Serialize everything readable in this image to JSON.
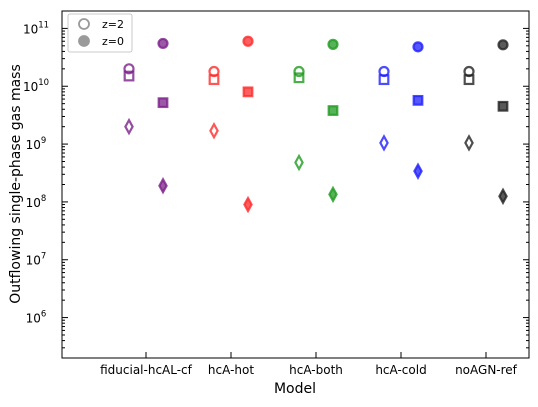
{
  "chart_data": {
    "type": "scatter",
    "title": "",
    "xlabel": "Model",
    "ylabel": "Outflowing single-phase gas mass",
    "yscale": "log",
    "ylim": [
      200000.0,
      200000000000.0
    ],
    "y_ticks": [
      {
        "value": 1000000.0,
        "base": "10",
        "exp": "6"
      },
      {
        "value": 10000000.0,
        "base": "10",
        "exp": "7"
      },
      {
        "value": 100000000.0,
        "base": "10",
        "exp": "8"
      },
      {
        "value": 1000000000.0,
        "base": "10",
        "exp": "9"
      },
      {
        "value": 10000000000.0,
        "base": "10",
        "exp": "10"
      },
      {
        "value": 100000000000.0,
        "base": "10",
        "exp": "11"
      }
    ],
    "categories": [
      "fiducial-hcAL-cf",
      "hcA-hot",
      "hcA-both",
      "hcA-cold",
      "noAGN-ref"
    ],
    "category_colors": [
      "#7b1f8a",
      "#ff2a2a",
      "#1f9a1f",
      "#1f1fff",
      "#222222"
    ],
    "legend": {
      "placement": "top-left",
      "entries": [
        {
          "label": "z=2",
          "filled": false
        },
        {
          "label": "z=0",
          "filled": true
        }
      ]
    },
    "series": [
      {
        "redshift": "z=2",
        "marker": "circle",
        "filled": false,
        "values": [
          20000000000.0,
          18000000000.0,
          18000000000.0,
          18000000000.0,
          18000000000.0
        ]
      },
      {
        "redshift": "z=2",
        "marker": "square",
        "filled": false,
        "values": [
          15000000000.0,
          13000000000.0,
          14000000000.0,
          13000000000.0,
          13000000000.0
        ]
      },
      {
        "redshift": "z=2",
        "marker": "diamond",
        "filled": false,
        "values": [
          2000000000.0,
          1700000000.0,
          480000000.0,
          1050000000.0,
          1050000000.0
        ]
      },
      {
        "redshift": "z=0",
        "marker": "circle",
        "filled": true,
        "values": [
          55000000000.0,
          60000000000.0,
          53000000000.0,
          48000000000.0,
          52000000000.0
        ]
      },
      {
        "redshift": "z=0",
        "marker": "square",
        "filled": true,
        "values": [
          5200000000.0,
          8000000000.0,
          3800000000.0,
          5700000000.0,
          4500000000.0
        ]
      },
      {
        "redshift": "z=0",
        "marker": "diamond",
        "filled": true,
        "values": [
          190000000.0,
          90000000.0,
          135000000.0,
          340000000.0,
          125000000.0
        ]
      }
    ]
  }
}
